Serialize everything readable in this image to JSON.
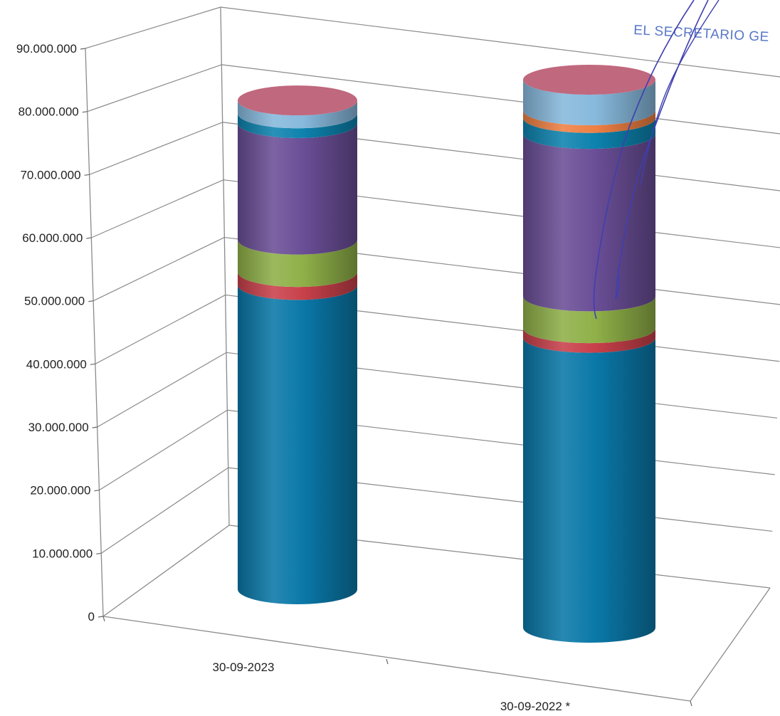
{
  "chart_data": {
    "type": "bar",
    "style": "3d-stacked-cylinder",
    "title": "",
    "xlabel": "",
    "ylabel": "",
    "ylim": [
      0,
      90000000
    ],
    "yticks": [
      0,
      10000000,
      20000000,
      30000000,
      40000000,
      50000000,
      60000000,
      70000000,
      80000000,
      90000000
    ],
    "ytick_labels": [
      "0",
      "10.000.000",
      "20.000.000",
      "30.000.000",
      "40.000.000",
      "50.000.000",
      "60.000.000",
      "70.000.000",
      "80.000.000",
      "90.000.000"
    ],
    "categories": [
      "30-09-2023",
      "30-09-2022 *"
    ],
    "grid": true,
    "legend": "none",
    "series": [
      {
        "color": "#0a78a8",
        "values": [
          47000000,
          45500000
        ]
      },
      {
        "color": "#c8404a",
        "values": [
          2000000,
          1500000
        ]
      },
      {
        "color": "#8fb048",
        "values": [
          5000000,
          5000000
        ]
      },
      {
        "color": "#6a4e96",
        "values": [
          18000000,
          25500000
        ]
      },
      {
        "color": "#0d82ae",
        "values": [
          1500000,
          2500000
        ]
      },
      {
        "color": "#ee8044",
        "values": [
          0,
          1200000
        ]
      },
      {
        "color": "#87b9dc",
        "values": [
          2000000,
          4800000
        ]
      },
      {
        "color": "#c0687e",
        "values": [
          0,
          0
        ]
      }
    ]
  },
  "stamp": {
    "text": "EL SECRETARIO GE",
    "color": "#5a78c8",
    "signature_color": "#3f3fb0"
  }
}
